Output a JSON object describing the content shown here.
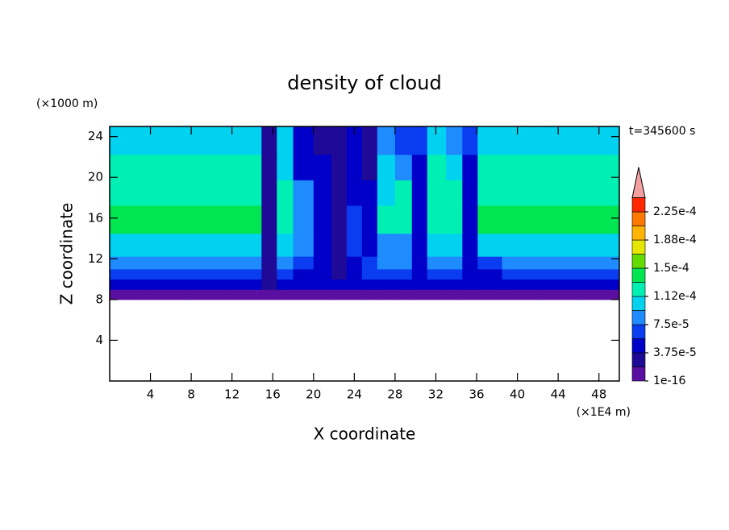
{
  "chart_data": {
    "type": "filled-contour",
    "title": "density of cloud",
    "x_label": "X coordinate",
    "y_label": "Z coordinate",
    "x_unit": "(×1E4 m)",
    "y_unit": "(×1000 m)",
    "annotation": "t=345600 s",
    "xlim": [
      0,
      50
    ],
    "ylim": [
      0,
      25
    ],
    "xticks": [
      4,
      8,
      12,
      16,
      20,
      24,
      28,
      32,
      36,
      40,
      44,
      48
    ],
    "yticks": [
      4,
      8,
      12,
      16,
      20,
      24
    ],
    "x": [
      2,
      6,
      10,
      14,
      15.8,
      17,
      19,
      21,
      22.5,
      24,
      25.5,
      27,
      29,
      30.3,
      32,
      34,
      35.2,
      37,
      40,
      44,
      48
    ],
    "z": [
      8.5,
      9.5,
      10.5,
      11.5,
      13,
      16,
      18.5,
      21,
      23.5
    ],
    "field": [
      [
        1.5e-05,
        1.5e-05,
        1.5e-05,
        1.5e-05,
        1.5e-05,
        1.5e-05,
        1.5e-05,
        1.5e-05,
        1.5e-05,
        1.5e-05,
        1.5e-05,
        1.5e-05,
        1.5e-05,
        1.5e-05,
        1.5e-05,
        1.5e-05,
        1.5e-05,
        1.5e-05,
        1.5e-05,
        1.5e-05,
        1.5e-05
      ],
      [
        4.5e-05,
        4.5e-05,
        4.5e-05,
        4.5e-05,
        3e-05,
        4.5e-05,
        4.5e-05,
        4.5e-05,
        4.5e-05,
        4.5e-05,
        4.5e-05,
        4.5e-05,
        4.5e-05,
        4.5e-05,
        4.5e-05,
        4.5e-05,
        4.5e-05,
        4.5e-05,
        4.5e-05,
        4.5e-05,
        4.5e-05
      ],
      [
        7e-05,
        7e-05,
        7e-05,
        7e-05,
        3e-05,
        7e-05,
        5e-05,
        4e-05,
        3e-05,
        4e-05,
        6e-05,
        7e-05,
        7e-05,
        4e-05,
        7e-05,
        7e-05,
        4e-05,
        5e-05,
        7e-05,
        7e-05,
        7e-05
      ],
      [
        9e-05,
        9e-05,
        9e-05,
        9e-05,
        3e-05,
        9e-05,
        6e-05,
        4e-05,
        3e-05,
        5e-05,
        6e-05,
        8e-05,
        8e-05,
        4e-05,
        9e-05,
        9e-05,
        4e-05,
        7e-05,
        9e-05,
        9e-05,
        9e-05
      ],
      [
        0.00011,
        0.00011,
        0.00011,
        0.00011,
        3e-05,
        0.0001,
        8e-05,
        5e-05,
        3e-05,
        6e-05,
        5e-05,
        9e-05,
        9e-05,
        4e-05,
        0.00011,
        0.00011,
        4e-05,
        0.00011,
        0.00011,
        0.00011,
        0.00011
      ],
      [
        0.00014,
        0.00014,
        0.00014,
        0.00014,
        3e-05,
        0.00012,
        9e-05,
        5e-05,
        3e-05,
        7e-05,
        4e-05,
        0.00012,
        0.00012,
        4e-05,
        0.00013,
        0.00012,
        4e-05,
        0.00014,
        0.00014,
        0.00014,
        0.00014
      ],
      [
        0.000125,
        0.000125,
        0.000125,
        0.000125,
        3e-05,
        0.000115,
        8e-05,
        4e-05,
        3e-05,
        5e-05,
        4e-05,
        0.00011,
        0.000125,
        4e-05,
        0.000125,
        0.000125,
        4e-05,
        0.000125,
        0.000125,
        0.000125,
        0.000125
      ],
      [
        0.00012,
        0.00012,
        0.00012,
        0.00012,
        3e-05,
        0.00011,
        5e-05,
        4e-05,
        3e-05,
        4e-05,
        3e-05,
        0.0001,
        8e-05,
        5e-05,
        0.00012,
        0.00011,
        4e-05,
        0.00012,
        0.00012,
        0.00012,
        0.00012
      ],
      [
        0.0001,
        0.0001,
        0.0001,
        0.0001,
        3e-05,
        0.0001,
        4e-05,
        3e-05,
        3e-05,
        4e-05,
        3e-05,
        8e-05,
        6e-05,
        6e-05,
        0.0001,
        8e-05,
        6e-05,
        0.0001,
        0.0001,
        0.0001,
        0.0001
      ]
    ],
    "levels": [
      1e-16,
      1.875e-05,
      3.75e-05,
      5.625e-05,
      7.5e-05,
      9.375e-05,
      0.0001125,
      0.00013125,
      0.00015,
      0.00016875,
      0.0001875,
      0.00020625,
      0.000225,
      0.00024375
    ],
    "colors": [
      "#5a0fa0",
      "#1e0a96",
      "#0000c8",
      "#0a3cf0",
      "#1e8cff",
      "#00d2f0",
      "#00f0b4",
      "#00e650",
      "#64dc00",
      "#e6e600",
      "#ffb400",
      "#ff7800",
      "#ff2800"
    ],
    "extend_color": "#f5a0a0",
    "colorbar_ticks": [
      {
        "value": 1e-16,
        "label": "1e-16"
      },
      {
        "value": 3.75e-05,
        "label": "3.75e-5"
      },
      {
        "value": 7.5e-05,
        "label": "7.5e-5"
      },
      {
        "value": 0.0001125,
        "label": "1.12e-4"
      },
      {
        "value": 0.00015,
        "label": "1.5e-4"
      },
      {
        "value": 0.0001875,
        "label": "1.88e-4"
      },
      {
        "value": 0.000225,
        "label": "2.25e-4"
      }
    ]
  }
}
